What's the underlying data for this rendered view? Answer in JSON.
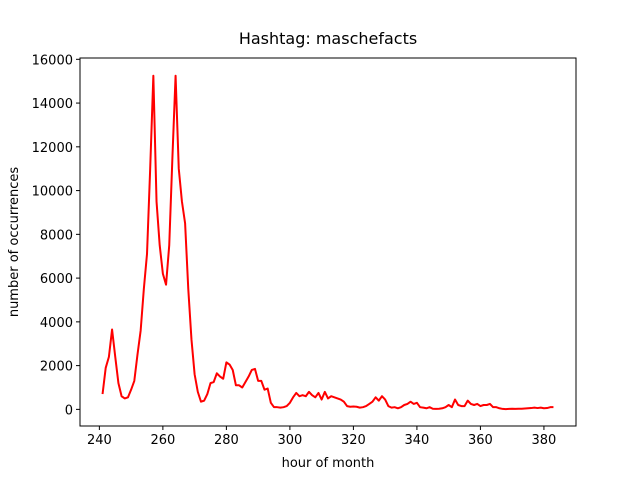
{
  "chart_data": {
    "type": "line",
    "title": "Hashtag: maschefacts",
    "x_label": "hour of month",
    "y_label": "number of occurrences",
    "color": "#ff0000",
    "x": [
      241,
      242,
      243,
      244,
      245,
      246,
      247,
      248,
      249,
      250,
      251,
      252,
      253,
      254,
      255,
      256,
      257,
      258,
      259,
      260,
      261,
      262,
      263,
      264,
      265,
      266,
      267,
      268,
      269,
      270,
      271,
      272,
      273,
      274,
      275,
      276,
      277,
      278,
      279,
      280,
      281,
      282,
      283,
      284,
      285,
      286,
      287,
      288,
      289,
      290,
      291,
      292,
      293,
      294,
      295,
      296,
      297,
      298,
      299,
      300,
      301,
      302,
      303,
      304,
      305,
      306,
      307,
      308,
      309,
      310,
      311,
      312,
      313,
      314,
      315,
      316,
      317,
      318,
      319,
      320,
      321,
      322,
      323,
      324,
      325,
      326,
      327,
      328,
      329,
      330,
      331,
      332,
      333,
      334,
      335,
      336,
      337,
      338,
      339,
      340,
      341,
      342,
      343,
      344,
      345,
      346,
      347,
      348,
      349,
      350,
      351,
      352,
      353,
      354,
      355,
      356,
      357,
      358,
      359,
      360,
      361,
      362,
      363,
      364,
      365,
      366,
      367,
      368,
      369,
      370,
      371,
      372,
      373,
      374,
      375,
      376,
      377,
      378,
      379,
      380,
      381,
      382,
      383
    ],
    "values": [
      700,
      1900,
      2400,
      3650,
      2400,
      1200,
      600,
      500,
      550,
      900,
      1300,
      2500,
      3600,
      5500,
      7100,
      11000,
      15250,
      9500,
      7500,
      6200,
      5700,
      7500,
      11500,
      15250,
      11000,
      9500,
      8500,
      5500,
      3200,
      1600,
      800,
      350,
      400,
      700,
      1200,
      1250,
      1650,
      1500,
      1400,
      2150,
      2050,
      1800,
      1100,
      1100,
      1000,
      1250,
      1500,
      1800,
      1850,
      1300,
      1300,
      900,
      950,
      300,
      100,
      100,
      80,
      100,
      150,
      300,
      550,
      750,
      600,
      650,
      600,
      800,
      650,
      550,
      750,
      450,
      800,
      500,
      600,
      550,
      500,
      450,
      350,
      150,
      120,
      130,
      120,
      80,
      100,
      150,
      250,
      350,
      550,
      400,
      600,
      450,
      150,
      80,
      100,
      50,
      100,
      200,
      250,
      350,
      250,
      300,
      100,
      80,
      50,
      100,
      30,
      20,
      30,
      50,
      100,
      200,
      100,
      450,
      200,
      150,
      150,
      400,
      250,
      200,
      250,
      150,
      200,
      200,
      250,
      100,
      100,
      50,
      20,
      10,
      20,
      30,
      20,
      30,
      30,
      40,
      50,
      60,
      80,
      60,
      80,
      50,
      60,
      100,
      100
    ],
    "xlim": [
      233.9,
      390.1
    ],
    "xticks": [
      240,
      260,
      280,
      300,
      320,
      340,
      360,
      380
    ],
    "ylim": [
      -760,
      16060
    ],
    "yticks": [
      0,
      2000,
      4000,
      6000,
      8000,
      10000,
      12000,
      14000,
      16000
    ]
  }
}
